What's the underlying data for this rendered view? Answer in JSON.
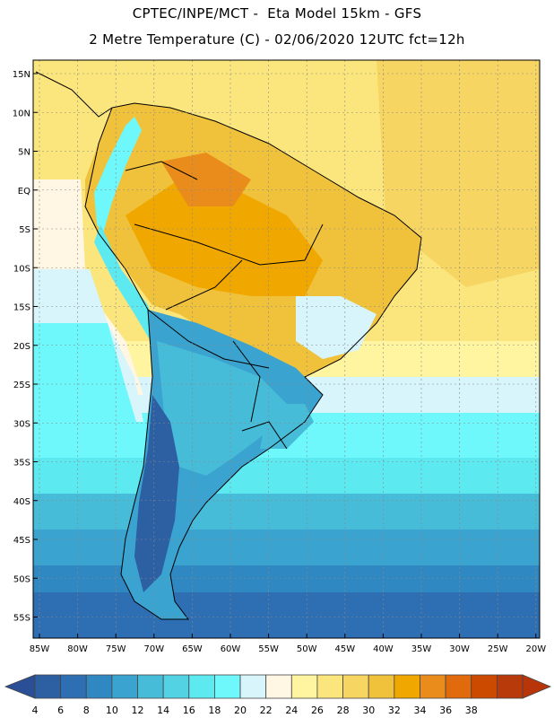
{
  "header": {
    "line1": "CPTEC/INPE/MCT -  Eta Model 15km - GFS",
    "line2": "2 Metre Temperature (C) - 02/06/2020 12UTC fct=12h"
  },
  "map": {
    "lat_labels": [
      "15N",
      "10N",
      "5N",
      "EQ",
      "5S",
      "10S",
      "15S",
      "20S",
      "25S",
      "30S",
      "35S",
      "40S",
      "45S",
      "50S",
      "55S"
    ],
    "lon_labels": [
      "85W",
      "80W",
      "75W",
      "70W",
      "65W",
      "60W",
      "55W",
      "50W",
      "45W",
      "40W",
      "35W",
      "30W",
      "25W",
      "20W"
    ]
  },
  "colorbar": {
    "levels": [
      "4",
      "6",
      "8",
      "10",
      "12",
      "14",
      "16",
      "18",
      "20",
      "22",
      "24",
      "26",
      "28",
      "30",
      "32",
      "34",
      "36",
      "38"
    ],
    "colors": [
      "#2d5fa3",
      "#2e6fb4",
      "#3088c2",
      "#3aa3cf",
      "#47bcd8",
      "#53d2e3",
      "#5de9f0",
      "#6ff8fb",
      "#d7f5fb",
      "#fff6e3",
      "#fff4a0",
      "#fbe67e",
      "#f6d562",
      "#f0c23c",
      "#f0a800",
      "#ea8c1c",
      "#e06a0c",
      "#cc4a00",
      "#b83a0a"
    ],
    "under_color": "#2a4f96",
    "over_color": "#b8350a"
  }
}
